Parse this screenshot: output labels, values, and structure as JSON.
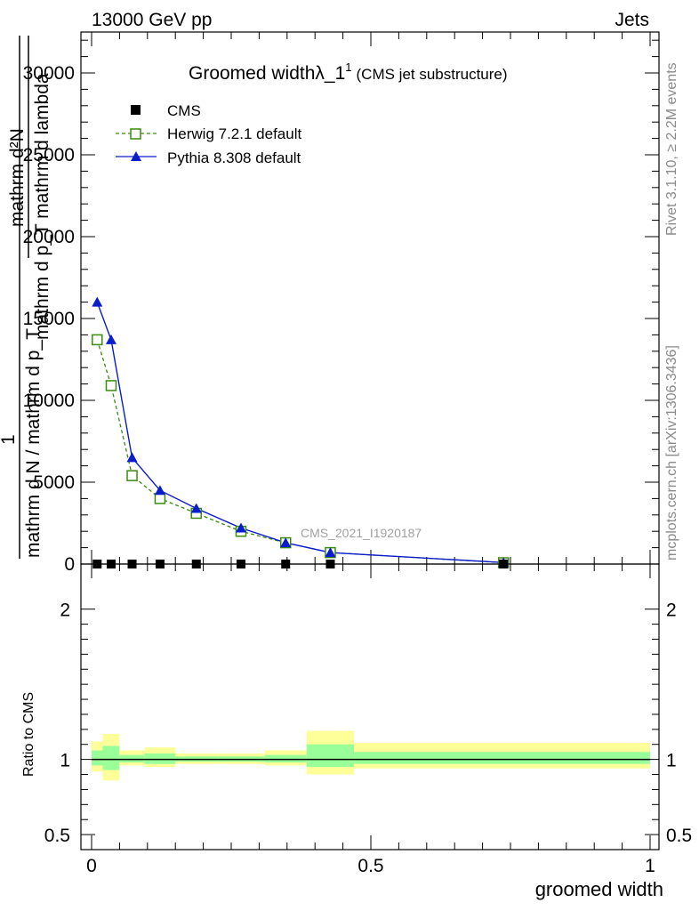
{
  "header": {
    "left": "13000 GeV pp",
    "right": "Jets"
  },
  "side_text": {
    "rivet": "Rivet 3.1.10, ≥ 2.2M events",
    "mcplots": "mcplots.cern.ch [arXiv:1306.3436]"
  },
  "watermark": "CMS_2021_I1920187",
  "chart_data": {
    "type": "scatter",
    "title": "Groomed widthλ_1",
    "title_sup": "1",
    "subtitle": "(CMS jet substructure)",
    "ylabel_numerator": "mathrm d²N",
    "ylabel_denominator": "mathrm d p_T mathrm d lambda",
    "ylabel_prefix": "1",
    "ylabel_prefix_denominator": "mathrm d N / mathrm d p_T",
    "xlabel": "groomed width",
    "ratio_ylabel": "Ratio to CMS",
    "xlim": [
      0,
      1
    ],
    "ylim": [
      0,
      32500
    ],
    "ratio_ylim": [
      0.4,
      2.3
    ],
    "main_yticks": [
      0,
      5000,
      10000,
      15000,
      20000,
      25000,
      30000
    ],
    "main_ytick_labels": [
      "0",
      "5000",
      "10000",
      "15000",
      "20000",
      "25000",
      "30000"
    ],
    "xticks": [
      0,
      0.5,
      1
    ],
    "xtick_labels": [
      "0",
      "0.5",
      "1"
    ],
    "ratio_yticks": [
      0.5,
      1,
      2
    ],
    "ratio_ytick_labels": [
      "0.5",
      "1",
      "2"
    ],
    "legend": [
      {
        "name": "CMS",
        "color": "#000000",
        "marker": "square-filled"
      },
      {
        "name": "Herwig 7.2.1 default",
        "color": "#3a8c0c",
        "marker": "square-open",
        "dashed": true
      },
      {
        "name": "Pythia 8.308 default",
        "color": "#0a1ccc",
        "marker": "triangle-filled"
      }
    ],
    "series": [
      {
        "name": "CMS",
        "x": [
          0.01,
          0.035,
          0.0725,
          0.1225,
          0.1875,
          0.2675,
          0.3475,
          0.4275,
          0.7375
        ],
        "y": [
          0,
          0,
          0,
          0,
          0,
          0,
          0,
          0,
          0
        ]
      },
      {
        "name": "Herwig 7.2.1 default",
        "x": [
          0.01,
          0.035,
          0.0725,
          0.1225,
          0.1875,
          0.2675,
          0.3475,
          0.4275,
          0.7375
        ],
        "y": [
          13700,
          10900,
          5400,
          4000,
          3100,
          2000,
          1300,
          700,
          80
        ]
      },
      {
        "name": "Pythia 8.308 default",
        "x": [
          0.01,
          0.035,
          0.0725,
          0.1225,
          0.1875,
          0.2675,
          0.3475,
          0.4275,
          0.7375
        ],
        "y": [
          16000,
          13700,
          6500,
          4500,
          3400,
          2200,
          1300,
          700,
          90
        ]
      }
    ],
    "ratio_bands": [
      {
        "x0": 0.0,
        "x1": 0.02,
        "yellow": [
          0.92,
          1.12
        ],
        "green": [
          0.96,
          1.06
        ]
      },
      {
        "x0": 0.02,
        "x1": 0.05,
        "yellow": [
          0.86,
          1.17
        ],
        "green": [
          0.93,
          1.09
        ]
      },
      {
        "x0": 0.05,
        "x1": 0.095,
        "yellow": [
          0.96,
          1.06
        ],
        "green": [
          0.98,
          1.03
        ]
      },
      {
        "x0": 0.095,
        "x1": 0.15,
        "yellow": [
          0.95,
          1.08
        ],
        "green": [
          0.97,
          1.04
        ]
      },
      {
        "x0": 0.15,
        "x1": 0.225,
        "yellow": [
          0.97,
          1.04
        ],
        "green": [
          0.985,
          1.02
        ]
      },
      {
        "x0": 0.225,
        "x1": 0.31,
        "yellow": [
          0.97,
          1.04
        ],
        "green": [
          0.985,
          1.02
        ]
      },
      {
        "x0": 0.31,
        "x1": 0.385,
        "yellow": [
          0.96,
          1.06
        ],
        "green": [
          0.98,
          1.03
        ]
      },
      {
        "x0": 0.385,
        "x1": 0.47,
        "yellow": [
          0.9,
          1.19
        ],
        "green": [
          0.95,
          1.1
        ]
      },
      {
        "x0": 0.47,
        "x1": 1.0,
        "yellow": [
          0.94,
          1.11
        ],
        "green": [
          0.97,
          1.05
        ]
      }
    ]
  }
}
